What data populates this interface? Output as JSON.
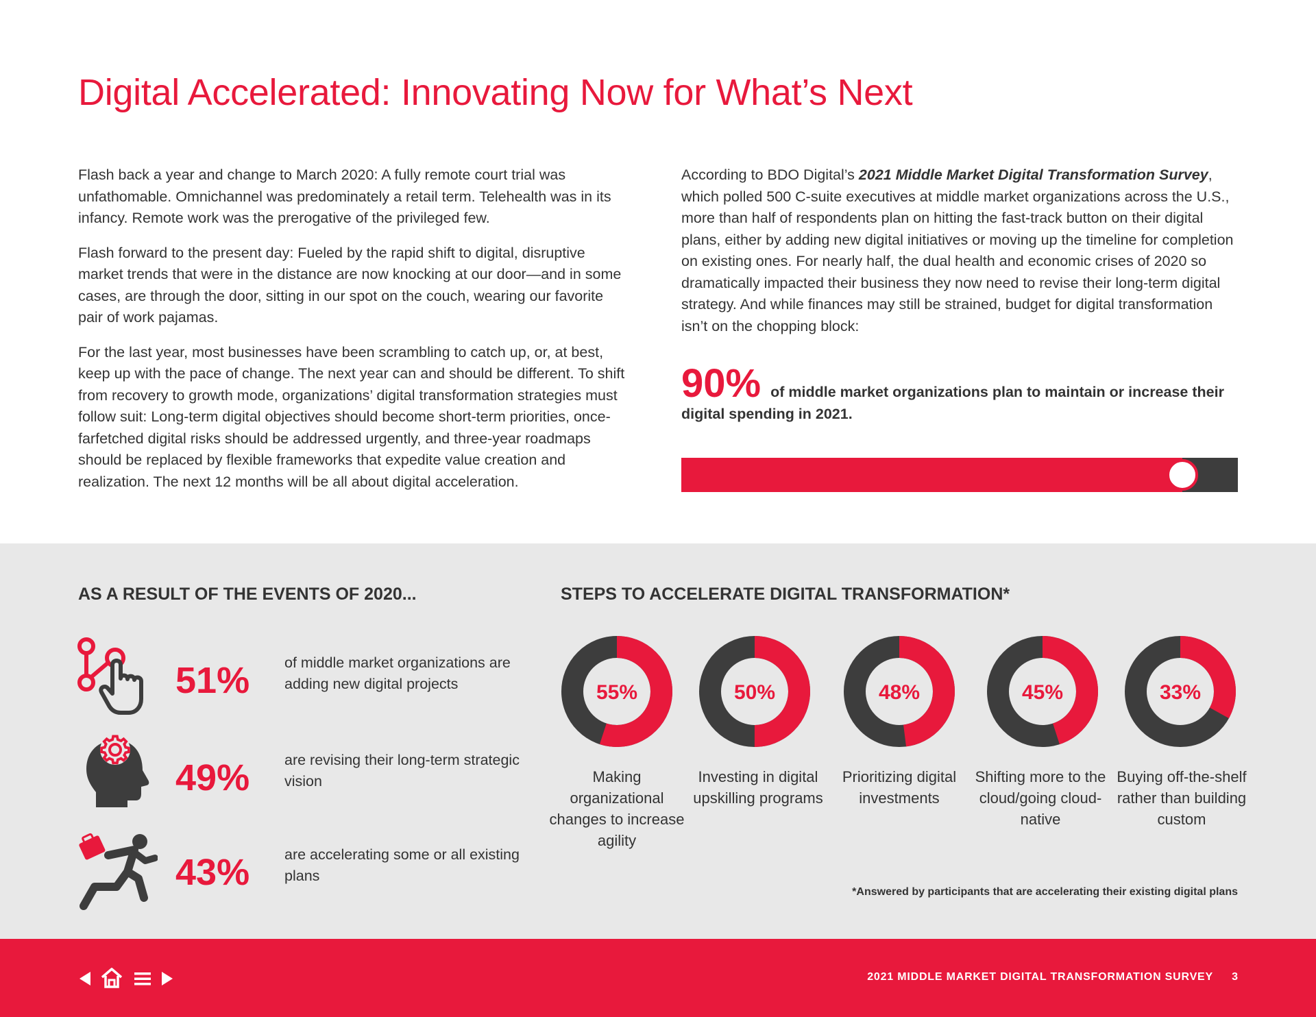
{
  "title": "Digital Accelerated: Innovating Now for What’s Next",
  "left_column": [
    "Flash back a year and change to March 2020: A fully remote court trial was unfathomable. Omnichannel was predominately a retail term. Telehealth was in its infancy. Remote work was the prerogative of the privileged few.",
    "Flash forward to the present day: Fueled by the rapid shift to digital, disruptive market trends that were in the distance are now knocking at our door—and in some cases, are through the door, sitting in our spot on the couch, wearing our favorite pair of work pajamas.",
    "For the last year, most businesses have been scrambling to catch up, or, at best, keep up with the pace of change. The next year can and should be different. To shift from recovery to growth mode, organizations’ digital transformation strategies must follow suit: Long-term digital objectives should become short-term priorities, once-farfetched digital risks should be addressed urgently, and three-year roadmaps should be replaced by flexible frameworks that expedite value creation and realization. The next 12 months will be all about digital acceleration."
  ],
  "right_column": {
    "intro_before": "According to BDO Digital’s ",
    "survey_name": "2021 Middle Market Digital Transformation Survey",
    "intro_after": ", which polled 500 C-suite executives at middle market organizations across the U.S., more than half of respondents plan on hitting the fast-track button on their digital plans, either by adding new digital initiatives or moving up the timeline for completion on existing ones. For nearly half, the dual health and economic crises of 2020 so dramatically impacted their business they now need to revise their long-term digital strategy. And while finances may still be strained, budget for digital transformation isn’t on the chopping block:"
  },
  "highlight": {
    "value": "90%",
    "text": "of middle market organizations plan to maintain or increase their digital spending in 2021.",
    "progress_fraction": 0.9
  },
  "events_section": {
    "heading": "AS A RESULT OF THE EVENTS OF 2020...",
    "stats": [
      {
        "icon": "touch-network-icon",
        "value": "51%",
        "text": "of middle market organizations are adding new digital projects"
      },
      {
        "icon": "head-gear-icon",
        "value": "49%",
        "text": "are revising their long-term strategic vision"
      },
      {
        "icon": "running-person-icon",
        "value": "43%",
        "text": "are accelerating some or all existing plans"
      }
    ]
  },
  "steps_section": {
    "heading": "STEPS TO ACCELERATE DIGITAL TRANSFORMATION*",
    "footnote": "*Answered by participants that are accelerating their existing digital plans"
  },
  "chart_data": {
    "type": "pie",
    "variant": "donut",
    "title": "STEPS TO ACCELERATE DIGITAL TRANSFORMATION*",
    "categories": [
      "Making organizational changes to increase agility",
      "Investing in digital upskilling programs",
      "Prioritizing digital investments",
      "Shifting more to the cloud/going cloud-native",
      "Buying off-the-shelf rather than building custom"
    ],
    "values": [
      55,
      50,
      48,
      45,
      33
    ],
    "labels": [
      "55%",
      "50%",
      "48%",
      "45%",
      "33%"
    ],
    "unit": "%"
  },
  "colors": {
    "accent": "#e8193c",
    "dark": "#3d3d3d",
    "panel": "#e8e8e8",
    "text": "#333333"
  },
  "footer": {
    "nav_icons": [
      "previous-arrow-icon",
      "home-icon",
      "menu-icon",
      "next-arrow-icon"
    ],
    "title": "2021 MIDDLE MARKET DIGITAL TRANSFORMATION SURVEY",
    "page": "3"
  }
}
